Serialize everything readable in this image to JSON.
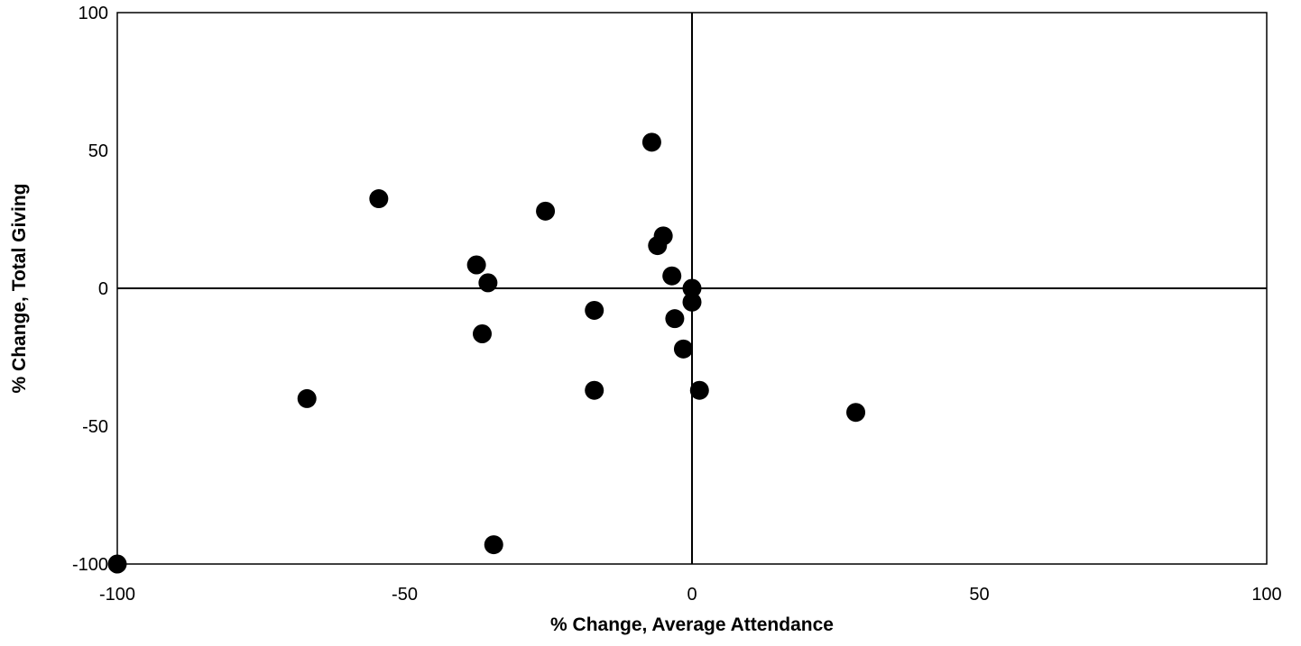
{
  "chart_data": {
    "type": "scatter",
    "title": "",
    "xlabel": "% Change, Average Attendance",
    "ylabel": "% Change, Total Giving",
    "xlim": [
      -100,
      100
    ],
    "ylim": [
      -100,
      100
    ],
    "xticks": [
      "-100",
      "-50",
      "0",
      "50",
      "100"
    ],
    "yticks": [
      "-100",
      "-50",
      "0",
      "50",
      "100"
    ],
    "grid": false,
    "legend": "none",
    "marker_color": "#000000",
    "points": [
      {
        "x": -100,
        "y": -100
      },
      {
        "x": -67,
        "y": -40
      },
      {
        "x": -54.5,
        "y": 32.5
      },
      {
        "x": -37.5,
        "y": 8.5
      },
      {
        "x": -35.5,
        "y": 2
      },
      {
        "x": -36.5,
        "y": -16.5
      },
      {
        "x": -34.5,
        "y": -93
      },
      {
        "x": -25.5,
        "y": 28
      },
      {
        "x": -17,
        "y": -8
      },
      {
        "x": -17,
        "y": -37
      },
      {
        "x": -7,
        "y": 53
      },
      {
        "x": -5,
        "y": 19
      },
      {
        "x": -6,
        "y": 15.5
      },
      {
        "x": -3.5,
        "y": 4.5
      },
      {
        "x": -3,
        "y": -11
      },
      {
        "x": -1.5,
        "y": -22
      },
      {
        "x": 0,
        "y": 0
      },
      {
        "x": 0,
        "y": -5
      },
      {
        "x": 1.3,
        "y": -37
      },
      {
        "x": 28.5,
        "y": -45
      }
    ]
  }
}
